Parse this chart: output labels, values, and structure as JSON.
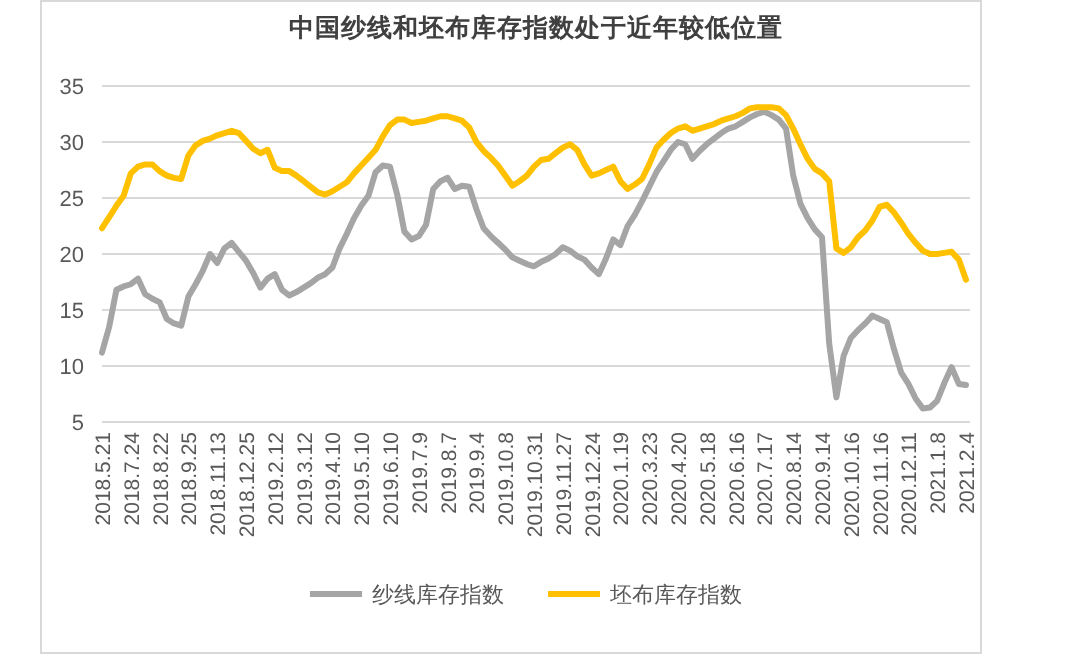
{
  "chart_data": {
    "type": "line",
    "title": "中国纱线和坯布库存指数处于近年较低位置",
    "categories": [
      "2018.5.21",
      null,
      null,
      null,
      "2018.7.24",
      null,
      null,
      null,
      "2018.8.22",
      null,
      null,
      null,
      "2018.9.25",
      null,
      null,
      null,
      "2018.11.13",
      null,
      null,
      null,
      "2018.12.25",
      null,
      null,
      null,
      "2019.2.12",
      null,
      null,
      null,
      "2019.3.12",
      null,
      null,
      null,
      "2019.4.10",
      null,
      null,
      null,
      "2019.5.10",
      null,
      null,
      null,
      "2019.6.10",
      null,
      null,
      null,
      "2019.7.9",
      null,
      null,
      null,
      "2019.8.7",
      null,
      null,
      null,
      "2019.9.4",
      null,
      null,
      null,
      "2019.10.8",
      null,
      null,
      null,
      "2019.10.31",
      null,
      null,
      null,
      "2019.11.27",
      null,
      null,
      null,
      "2019.12.24",
      null,
      null,
      null,
      "2020.1.19",
      null,
      null,
      null,
      "2020.3.23",
      null,
      null,
      null,
      "2020.4.20",
      null,
      null,
      null,
      "2020.5.18",
      null,
      null,
      null,
      "2020.6.16",
      null,
      null,
      null,
      "2020.7.17",
      null,
      null,
      null,
      "2020.8.14",
      null,
      null,
      null,
      "2020.9.14",
      null,
      null,
      null,
      "2020.10.16",
      null,
      null,
      null,
      "2020.11.16",
      null,
      null,
      null,
      "2020.12.11",
      null,
      null,
      null,
      "2021.1.8",
      null,
      null,
      null,
      "2021.2.4"
    ],
    "series": [
      {
        "name": "纱线库存指数",
        "color": "#a5a5a5",
        "values": [
          11.2,
          13.5,
          16.8,
          17.1,
          17.3,
          17.8,
          16.4,
          16,
          15.7,
          14.2,
          13.8,
          13.6,
          16.2,
          17.3,
          18.5,
          20,
          19.2,
          20.5,
          21,
          20.2,
          19.4,
          18.3,
          17,
          17.8,
          18.2,
          16.8,
          16.3,
          16.6,
          17,
          17.4,
          17.9,
          18.2,
          18.8,
          20.5,
          21.8,
          23.2,
          24.3,
          25.2,
          27.3,
          27.9,
          27.8,
          25.3,
          22,
          21.3,
          21.6,
          22.6,
          25.8,
          26.5,
          26.8,
          25.8,
          26.1,
          26,
          24,
          22.3,
          21.6,
          21,
          20.4,
          19.7,
          19.4,
          19.1,
          18.9,
          19.3,
          19.6,
          20,
          20.6,
          20.3,
          19.8,
          19.5,
          18.8,
          18.2,
          19.6,
          21.3,
          20.8,
          22.5,
          23.5,
          24.7,
          26,
          27.3,
          28.3,
          29.3,
          30,
          29.8,
          28.5,
          29.2,
          29.8,
          30.3,
          30.8,
          31.2,
          31.4,
          31.8,
          32.2,
          32.5,
          32.7,
          32.4,
          32,
          31.2,
          27,
          24.5,
          23.2,
          22.2,
          21.5,
          12,
          7.2,
          10.9,
          12.5,
          13.2,
          13.8,
          14.5,
          14.2,
          13.9,
          11.5,
          9.4,
          8.4,
          7.1,
          6.2,
          6.3,
          6.9,
          8.5,
          9.9,
          8.4,
          8.3
        ]
      },
      {
        "name": "坯布库存指数",
        "color": "#ffc000",
        "values": [
          22.3,
          23.3,
          24.3,
          25.2,
          27.2,
          27.8,
          28,
          28,
          27.4,
          27,
          26.8,
          26.7,
          28.8,
          29.7,
          30.1,
          30.3,
          30.6,
          30.8,
          31,
          30.8,
          30.1,
          29.4,
          29,
          29.3,
          27.7,
          27.4,
          27.4,
          27,
          26.5,
          26,
          25.5,
          25.3,
          25.6,
          26,
          26.4,
          27.2,
          27.9,
          28.6,
          29.3,
          30.5,
          31.5,
          32,
          32,
          31.7,
          31.8,
          31.9,
          32.1,
          32.3,
          32.3,
          32.1,
          31.9,
          31.3,
          30,
          29.2,
          28.6,
          27.9,
          27,
          26.1,
          26.5,
          27,
          27.8,
          28.4,
          28.5,
          29,
          29.5,
          29.8,
          29.3,
          28,
          27,
          27.2,
          27.5,
          27.8,
          26.5,
          25.8,
          26.2,
          26.7,
          28,
          29.5,
          30.2,
          30.8,
          31.2,
          31.4,
          31,
          31.2,
          31.4,
          31.6,
          31.9,
          32.1,
          32.3,
          32.6,
          33,
          33.1,
          33.1,
          33.1,
          33,
          32.4,
          31.2,
          29.8,
          28.5,
          27.6,
          27.2,
          26.5,
          20.5,
          20.1,
          20.6,
          21.5,
          22.1,
          23,
          24.2,
          24.4,
          23.7,
          22.8,
          21.8,
          21,
          20.3,
          20,
          20,
          20.1,
          20.2,
          19.5,
          17.7
        ]
      }
    ],
    "ylim": [
      5,
      35
    ],
    "yticks": [
      5,
      10,
      15,
      20,
      25,
      30,
      35
    ],
    "grid": "y",
    "legend": "bottom",
    "marker": "none"
  }
}
